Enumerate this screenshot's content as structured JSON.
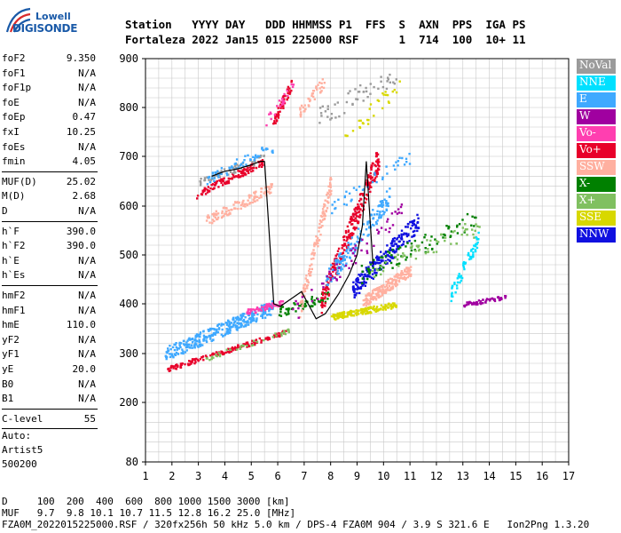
{
  "logo": {
    "line1": "Lowell",
    "line2": "DIGISONDE"
  },
  "header": {
    "row1": "Station   YYYY DAY   DDD HHMMSS P1  FFS  S  AXN  PPS  IGA PS",
    "row2": "Fortaleza 2022 Jan15 015 225000 RSF      1  714  100  10+ 11"
  },
  "params": [
    {
      "k": "foF2",
      "v": "9.350"
    },
    {
      "k": "foF1",
      "v": "N/A"
    },
    {
      "k": "foF1p",
      "v": "N/A"
    },
    {
      "k": "foE",
      "v": "N/A"
    },
    {
      "k": "foEp",
      "v": "0.47"
    },
    {
      "k": "fxI",
      "v": "10.25"
    },
    {
      "k": "foEs",
      "v": "N/A"
    },
    {
      "k": "fmin",
      "v": "4.05"
    },
    {
      "k": "MUF(D)",
      "v": "25.02"
    },
    {
      "k": "M(D)",
      "v": "2.68"
    },
    {
      "k": "D",
      "v": "N/A"
    },
    {
      "k": "h`F",
      "v": "390.0"
    },
    {
      "k": "h`F2",
      "v": "390.0"
    },
    {
      "k": "h`E",
      "v": "N/A"
    },
    {
      "k": "h`Es",
      "v": "N/A"
    },
    {
      "k": "hmF2",
      "v": "N/A"
    },
    {
      "k": "hmF1",
      "v": "N/A"
    },
    {
      "k": "hmE",
      "v": "110.0"
    },
    {
      "k": "yF2",
      "v": "N/A"
    },
    {
      "k": "yF1",
      "v": "N/A"
    },
    {
      "k": "yE",
      "v": "20.0"
    },
    {
      "k": "B0",
      "v": "N/A"
    },
    {
      "k": "B1",
      "v": "N/A"
    },
    {
      "k": "C-level",
      "v": "55"
    }
  ],
  "auto": {
    "line1": "Auto:",
    "line2": "Artist5",
    "line3": "500200"
  },
  "legend": [
    {
      "label": "NoVal",
      "color": "#9b9b9b"
    },
    {
      "label": "NNE",
      "color": "#00e0ff"
    },
    {
      "label": "E",
      "color": "#3fa9ff"
    },
    {
      "label": "W",
      "color": "#a000a0"
    },
    {
      "label": "Vo-",
      "color": "#ff3fb0"
    },
    {
      "label": "Vo+",
      "color": "#e8002a"
    },
    {
      "label": "SSW",
      "color": "#ffb0a0"
    },
    {
      "label": "X-",
      "color": "#008000"
    },
    {
      "label": "X+",
      "color": "#80c060"
    },
    {
      "label": "SSE",
      "color": "#d8d800"
    },
    {
      "label": "NNW",
      "color": "#1010e0"
    }
  ],
  "footer": {
    "line1": "D     100  200  400  600  800 1000 1500 3000 [km]",
    "line2": "MUF   9.7  9.8 10.1 10.7 11.5 12.8 16.2 25.0 [MHz]",
    "line3": "FZA0M_2022015225000.RSF / 320fx256h 50 kHz 5.0 km / DPS-4 FZA0M 904 / 3.9 S 321.6 E   Ion2Png 1.3.20"
  },
  "chart_data": {
    "type": "scatter",
    "x_ticks": [
      "1",
      "2",
      "3",
      "4",
      "5",
      "6",
      "7",
      "8",
      "9",
      "10",
      "11",
      "12",
      "13",
      "14",
      "15",
      "16",
      "17"
    ],
    "y_ticks": [
      "80",
      "200",
      "300",
      "400",
      "500",
      "600",
      "700",
      "800",
      "900"
    ],
    "xlim": [
      1,
      17
    ],
    "ylim": [
      80,
      900
    ],
    "grid": true,
    "trace": {
      "x": [
        5.5,
        5.85,
        6.1,
        6.5,
        6.9,
        7.15,
        7.45,
        7.8,
        8.3,
        8.7,
        9.0,
        9.2,
        9.35,
        9.6
      ],
      "y": [
        690,
        400,
        395,
        410,
        425,
        400,
        370,
        380,
        420,
        460,
        500,
        560,
        690,
        480
      ]
    },
    "trace_o": {
      "x": [
        3.5,
        4.0,
        4.5,
        5.0,
        5.35,
        5.5
      ],
      "y": [
        660,
        670,
        675,
        683,
        690,
        690
      ]
    },
    "clusters": [
      {
        "s": "E",
        "x": [
          1.7,
          5.8
        ],
        "y": [
          300,
          395
        ],
        "n": 320,
        "spread": 14
      },
      {
        "s": "Vo-",
        "x": [
          4.8,
          6.2
        ],
        "y": [
          385,
          405
        ],
        "n": 60,
        "spread": 6
      },
      {
        "s": "Vo+",
        "x": [
          1.8,
          6.3
        ],
        "y": [
          270,
          345
        ],
        "n": 160,
        "spread": 5
      },
      {
        "s": "X+",
        "x": [
          3.2,
          6.5
        ],
        "y": [
          290,
          350
        ],
        "n": 40,
        "spread": 5
      },
      {
        "s": "X-",
        "x": [
          6.0,
          8.0
        ],
        "y": [
          385,
          420
        ],
        "n": 60,
        "spread": 10
      },
      {
        "s": "Vo+",
        "x": [
          2.9,
          5.4
        ],
        "y": [
          625,
          690
        ],
        "n": 120,
        "spread": 8
      },
      {
        "s": "SSW",
        "x": [
          3.2,
          5.8
        ],
        "y": [
          570,
          640
        ],
        "n": 120,
        "spread": 10
      },
      {
        "s": "NoVal",
        "x": [
          3.0,
          5.5
        ],
        "y": [
          650,
          700
        ],
        "n": 60,
        "spread": 8
      },
      {
        "s": "E",
        "x": [
          3.3,
          5.8
        ],
        "y": [
          655,
          720
        ],
        "n": 60,
        "spread": 12
      },
      {
        "s": "Vo+",
        "x": [
          5.8,
          6.5
        ],
        "y": [
          770,
          850
        ],
        "n": 50,
        "spread": 12
      },
      {
        "s": "SSW",
        "x": [
          6.8,
          8.0
        ],
        "y": [
          390,
          650
        ],
        "n": 120,
        "spread": 18
      },
      {
        "s": "Vo+",
        "x": [
          7.6,
          9.8
        ],
        "y": [
          400,
          700
        ],
        "n": 260,
        "spread": 25
      },
      {
        "s": "SSE",
        "x": [
          8.0,
          10.5
        ],
        "y": [
          375,
          400
        ],
        "n": 160,
        "spread": 6
      },
      {
        "s": "SSW",
        "x": [
          9.2,
          11.0
        ],
        "y": [
          405,
          470
        ],
        "n": 200,
        "spread": 12
      },
      {
        "s": "NNW",
        "x": [
          8.8,
          11.3
        ],
        "y": [
          430,
          570
        ],
        "n": 220,
        "spread": 20
      },
      {
        "s": "E",
        "x": [
          7.8,
          10.2
        ],
        "y": [
          450,
          620
        ],
        "n": 150,
        "spread": 20
      },
      {
        "s": "X-",
        "x": [
          9.0,
          13.6
        ],
        "y": [
          460,
          580
        ],
        "n": 80,
        "spread": 20
      },
      {
        "s": "X+",
        "x": [
          9.5,
          13.6
        ],
        "y": [
          470,
          560
        ],
        "n": 60,
        "spread": 18
      },
      {
        "s": "NNE",
        "x": [
          12.5,
          13.6
        ],
        "y": [
          420,
          540
        ],
        "n": 60,
        "spread": 15
      },
      {
        "s": "W",
        "x": [
          13.0,
          14.6
        ],
        "y": [
          400,
          415
        ],
        "n": 60,
        "spread": 4
      },
      {
        "s": "W",
        "x": [
          6.5,
          10.8
        ],
        "y": [
          380,
          600
        ],
        "n": 60,
        "spread": 20
      },
      {
        "s": "NoVal",
        "x": [
          7.5,
          10.5
        ],
        "y": [
          780,
          870
        ],
        "n": 50,
        "spread": 20
      },
      {
        "s": "SSE",
        "x": [
          8.5,
          10.6
        ],
        "y": [
          740,
          850
        ],
        "n": 30,
        "spread": 20
      },
      {
        "s": "SSW",
        "x": [
          6.8,
          7.8
        ],
        "y": [
          790,
          860
        ],
        "n": 40,
        "spread": 12
      },
      {
        "s": "Vo-",
        "x": [
          5.5,
          6.6
        ],
        "y": [
          770,
          850
        ],
        "n": 25,
        "spread": 10
      },
      {
        "s": "E",
        "x": [
          8.0,
          11.0
        ],
        "y": [
          600,
          700
        ],
        "n": 40,
        "spread": 15
      }
    ]
  }
}
